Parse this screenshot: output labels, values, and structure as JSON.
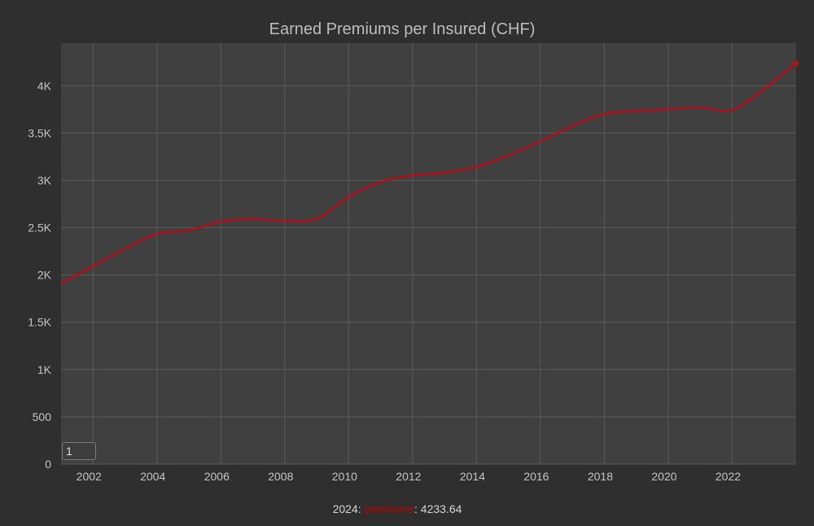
{
  "chart_data": {
    "type": "line",
    "title": "Earned Premiums per Insured (CHF)",
    "xlabel": "",
    "ylabel": "",
    "xlim": [
      2001,
      2024
    ],
    "ylim": [
      0,
      4450
    ],
    "x_ticks": [
      2002,
      2004,
      2006,
      2008,
      2010,
      2012,
      2014,
      2016,
      2018,
      2020,
      2022
    ],
    "y_ticks": [
      {
        "value": 0,
        "label": "0"
      },
      {
        "value": 500,
        "label": "500"
      },
      {
        "value": 1000,
        "label": "1K"
      },
      {
        "value": 1500,
        "label": "1.5K"
      },
      {
        "value": 2000,
        "label": "2K"
      },
      {
        "value": 2500,
        "label": "2.5K"
      },
      {
        "value": 3000,
        "label": "3K"
      },
      {
        "value": 3500,
        "label": "3.5K"
      },
      {
        "value": 4000,
        "label": "4K"
      }
    ],
    "grid": true,
    "series": [
      {
        "name": "premiums",
        "color": "#b0101e",
        "x": [
          2001,
          2002,
          2003,
          2004,
          2005,
          2006,
          2007,
          2008,
          2009,
          2010,
          2011,
          2012,
          2013,
          2014,
          2015,
          2016,
          2017,
          2018,
          2019,
          2020,
          2021,
          2022,
          2023,
          2024
        ],
        "values": [
          1905,
          2090,
          2270,
          2430,
          2470,
          2560,
          2590,
          2570,
          2590,
          2820,
          2980,
          3050,
          3080,
          3140,
          3260,
          3410,
          3570,
          3700,
          3730,
          3750,
          3770,
          3740,
          3960,
          4233.64
        ]
      }
    ]
  },
  "legend": {
    "x_label": "2024",
    "series_name": "premiums",
    "value": "4233.64"
  },
  "roller": {
    "value": "1"
  }
}
